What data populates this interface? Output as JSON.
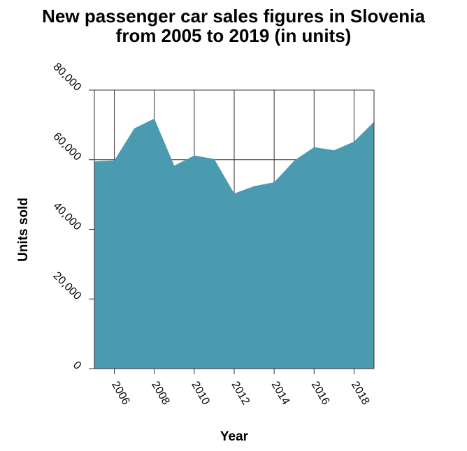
{
  "chart_data": {
    "type": "area",
    "title": "New passenger car sales figures in Slovenia from 2005 to 2019 (in units)",
    "title_lines": [
      "New passenger car sales figures in Slovenia",
      "from 2005 to 2019 (in units)"
    ],
    "xlabel": "Year",
    "ylabel": "Units sold",
    "x": [
      2005,
      2006,
      2007,
      2008,
      2009,
      2010,
      2011,
      2012,
      2013,
      2014,
      2015,
      2016,
      2017,
      2018,
      2019
    ],
    "values": [
      59500,
      59800,
      69000,
      71800,
      58300,
      61200,
      60200,
      50300,
      52400,
      53500,
      59700,
      63600,
      62700,
      65200,
      70900
    ],
    "xlim": [
      2005,
      2019
    ],
    "ylim": [
      0,
      80000
    ],
    "x_ticks": [
      2006,
      2008,
      2010,
      2012,
      2014,
      2016,
      2018
    ],
    "x_tick_labels": [
      "2006",
      "2008",
      "2010",
      "2012",
      "2014",
      "2016",
      "2018"
    ],
    "y_ticks": [
      0,
      20000,
      40000,
      60000,
      80000
    ],
    "y_tick_labels": [
      "0",
      "20,000",
      "40,000",
      "60,000",
      "80,000"
    ],
    "grid": true,
    "legend": "none",
    "fill_color": "#4a9ab0"
  }
}
